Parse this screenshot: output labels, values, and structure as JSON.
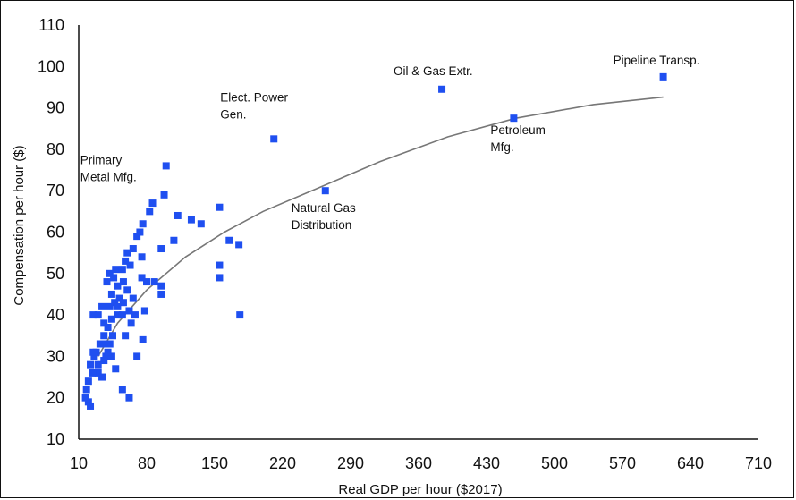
{
  "chart_data": {
    "type": "scatter",
    "xlabel": "Real GDP per hour ($2017)",
    "ylabel": "Compensation per hour ($)",
    "xlim": [
      10,
      710
    ],
    "ylim": [
      10,
      110
    ],
    "xticks": [
      10,
      80,
      150,
      220,
      290,
      360,
      430,
      500,
      570,
      640,
      710
    ],
    "yticks": [
      10,
      20,
      30,
      40,
      50,
      60,
      70,
      80,
      90,
      100,
      110
    ],
    "grid": false,
    "marker_color": "#1f4ff0",
    "trend_color": "#777777",
    "points": [
      [
        612,
        97.5
      ],
      [
        384,
        94.5
      ],
      [
        458,
        87.5
      ],
      [
        211,
        82.5
      ],
      [
        100,
        76
      ],
      [
        264,
        70
      ],
      [
        98,
        69
      ],
      [
        86,
        67
      ],
      [
        83,
        65
      ],
      [
        155,
        66
      ],
      [
        112,
        64
      ],
      [
        126,
        63
      ],
      [
        136,
        62
      ],
      [
        76,
        62
      ],
      [
        73,
        60
      ],
      [
        70,
        59
      ],
      [
        66,
        56
      ],
      [
        95,
        56
      ],
      [
        60,
        55
      ],
      [
        58,
        53
      ],
      [
        63,
        52
      ],
      [
        75,
        54
      ],
      [
        108,
        58
      ],
      [
        165,
        58
      ],
      [
        175,
        57
      ],
      [
        155,
        52
      ],
      [
        155,
        49
      ],
      [
        176,
        40
      ],
      [
        42,
        50
      ],
      [
        46,
        49
      ],
      [
        48,
        51
      ],
      [
        55,
        51
      ],
      [
        50,
        47
      ],
      [
        56,
        48
      ],
      [
        60,
        46
      ],
      [
        44,
        45
      ],
      [
        47,
        43
      ],
      [
        39,
        48
      ],
      [
        52,
        44
      ],
      [
        42,
        42
      ],
      [
        66,
        44
      ],
      [
        75,
        49
      ],
      [
        80,
        48
      ],
      [
        88,
        48
      ],
      [
        95,
        47
      ],
      [
        95,
        45
      ],
      [
        56,
        43
      ],
      [
        62,
        41
      ],
      [
        68,
        40
      ],
      [
        50,
        40
      ],
      [
        44,
        39
      ],
      [
        36,
        38
      ],
      [
        40,
        37
      ],
      [
        30,
        40
      ],
      [
        25,
        40
      ],
      [
        34,
        42
      ],
      [
        45,
        35
      ],
      [
        36,
        35
      ],
      [
        32,
        33
      ],
      [
        28,
        31
      ],
      [
        38,
        30
      ],
      [
        44,
        30
      ],
      [
        26,
        30
      ],
      [
        30,
        28
      ],
      [
        38,
        33
      ],
      [
        42,
        33
      ],
      [
        36,
        29
      ],
      [
        40,
        31
      ],
      [
        48,
        27
      ],
      [
        30,
        26
      ],
      [
        34,
        25
      ],
      [
        22,
        28
      ],
      [
        24,
        26
      ],
      [
        20,
        24
      ],
      [
        18,
        22
      ],
      [
        17,
        20
      ],
      [
        20,
        19
      ],
      [
        22,
        18
      ],
      [
        55,
        22
      ],
      [
        62,
        20
      ],
      [
        64,
        38
      ],
      [
        78,
        41
      ],
      [
        76,
        34
      ],
      [
        70,
        30
      ],
      [
        55,
        40
      ],
      [
        58,
        35
      ],
      [
        25,
        31
      ],
      [
        50,
        42
      ]
    ],
    "trend": [
      [
        30,
        30
      ],
      [
        50,
        38
      ],
      [
        80,
        46
      ],
      [
        120,
        54
      ],
      [
        160,
        60
      ],
      [
        200,
        65
      ],
      [
        260,
        71
      ],
      [
        320,
        77
      ],
      [
        390,
        83
      ],
      [
        460,
        87.5
      ],
      [
        540,
        90.8
      ],
      [
        612,
        92.6
      ]
    ],
    "annotations": [
      {
        "text": "Pipeline Transp.",
        "x": 612,
        "y": 97.5,
        "lines": [
          "Pipeline Transp."
        ]
      },
      {
        "text": "Oil & Gas Extr.",
        "x": 384,
        "y": 94.5,
        "lines": [
          "Oil & Gas Extr."
        ]
      },
      {
        "text": "Petroleum Mfg.",
        "x": 458,
        "y": 87.5,
        "lines": [
          "Petroleum",
          "Mfg."
        ]
      },
      {
        "text": "Elect. Power Gen.",
        "x": 211,
        "y": 82.5,
        "lines": [
          "Elect. Power",
          "Gen."
        ]
      },
      {
        "text": "Primary Metal Mfg.",
        "x": 100,
        "y": 76,
        "lines": [
          "Primary",
          "Metal Mfg."
        ]
      },
      {
        "text": "Natural Gas Distribution",
        "x": 264,
        "y": 70,
        "lines": [
          "Natural Gas",
          "Distribution"
        ]
      }
    ]
  }
}
